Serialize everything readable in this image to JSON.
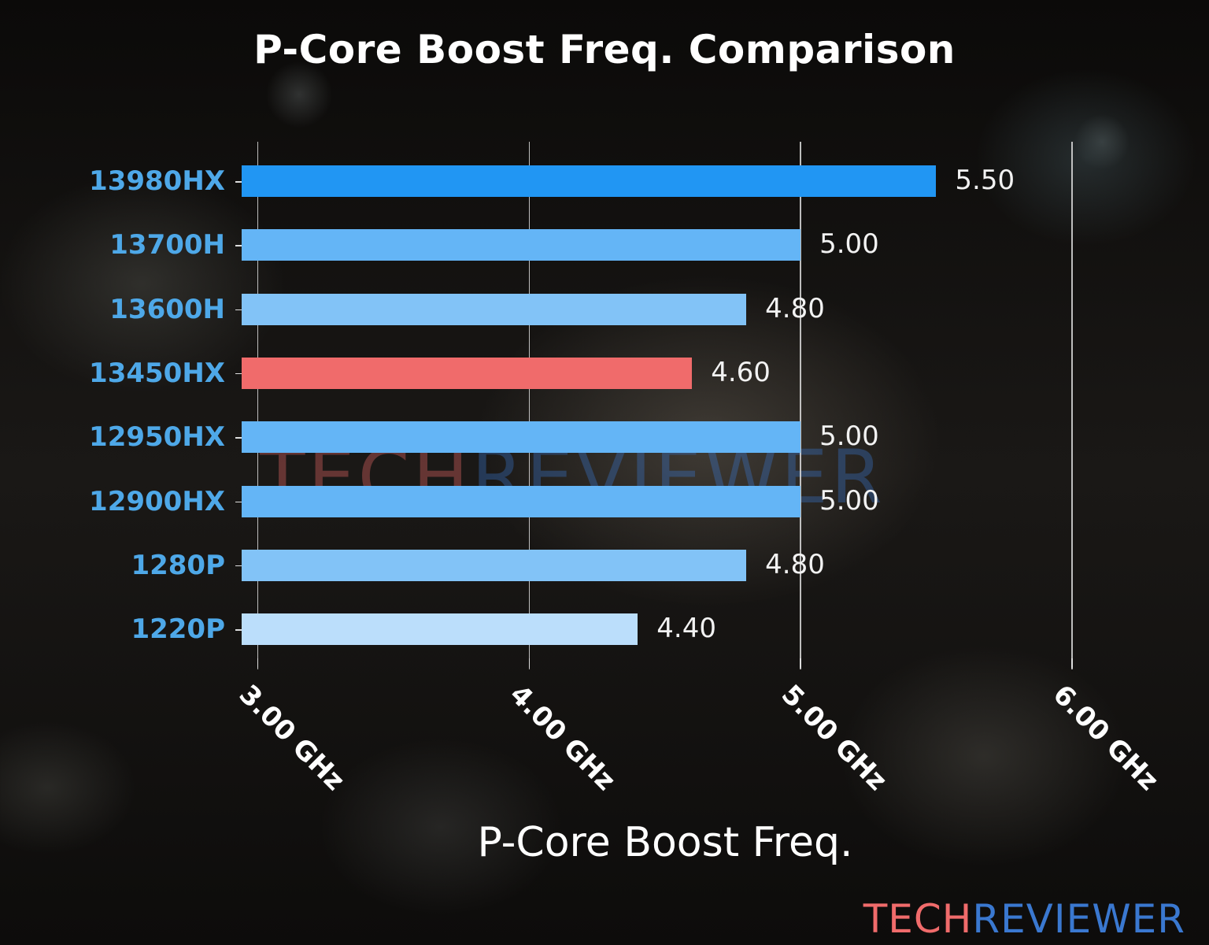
{
  "chart_data": {
    "type": "bar",
    "orientation": "horizontal",
    "title": "P-Core Boost Freq. Comparison",
    "xlabel": "P-Core Boost Freq.",
    "ylabel": "",
    "categories": [
      "13980HX",
      "13700H",
      "13600H",
      "13450HX",
      "12950HX",
      "12900HX",
      "1280P",
      "1220P"
    ],
    "values": [
      5.5,
      5.0,
      4.8,
      4.6,
      5.0,
      5.0,
      4.8,
      4.4
    ],
    "value_labels": [
      "5.50",
      "5.00",
      "4.80",
      "4.60",
      "5.00",
      "5.00",
      "4.80",
      "4.40"
    ],
    "bar_colors": [
      "#2196f3",
      "#64b5f6",
      "#82c3f7",
      "#f06b6b",
      "#64b5f6",
      "#64b5f6",
      "#82c3f7",
      "#bbdefb"
    ],
    "highlighted": "13450HX",
    "x_ticks": [
      3.0,
      4.0,
      5.0,
      6.0
    ],
    "x_tick_labels": [
      "3.00 GHz",
      "4.00 GHz",
      "5.00 GHz",
      "6.00 GHz"
    ],
    "xlim": [
      2.94,
      6.1
    ],
    "grid": "vertical",
    "legend": "none",
    "units": "GHz"
  },
  "branding": {
    "logo_part1": "TECH",
    "logo_part2": "REVIEWER",
    "watermark_part1": "TECH",
    "watermark_part2": "REVIEWER"
  }
}
